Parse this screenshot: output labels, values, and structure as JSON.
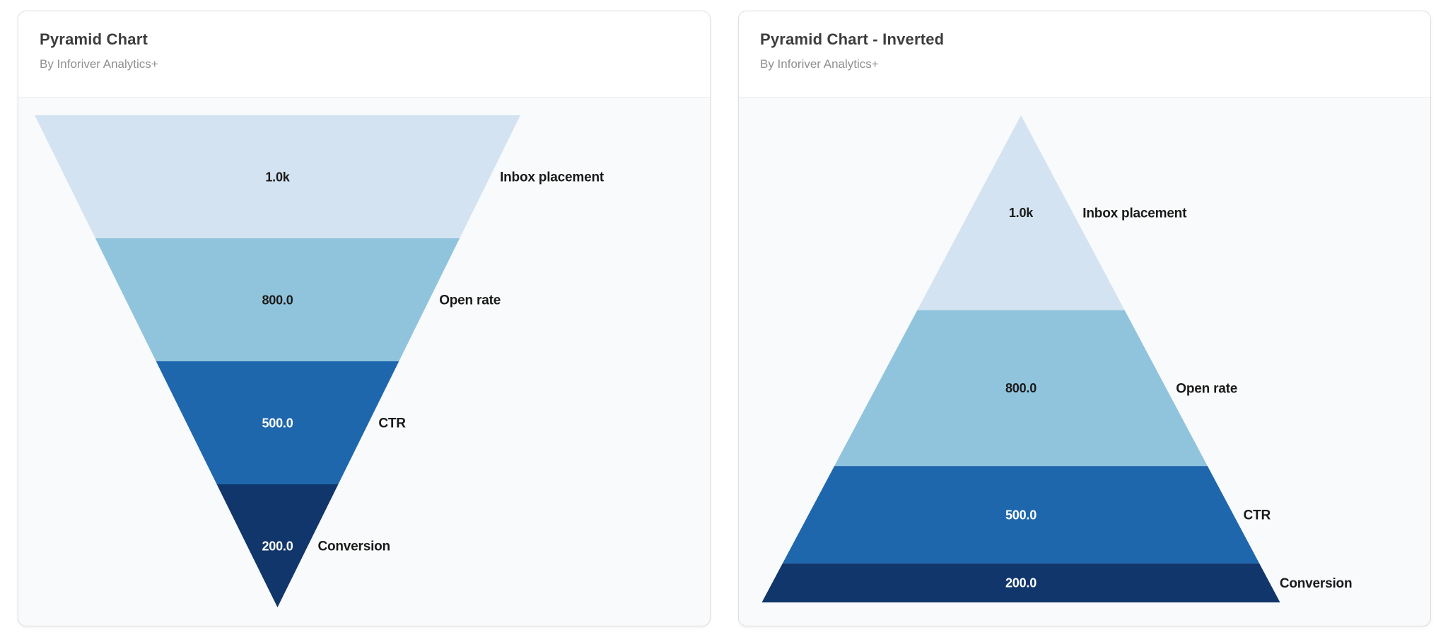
{
  "page": {
    "background": "#ffffff"
  },
  "cards": [
    {
      "title": "Pyramid Chart",
      "subtitle": "By Inforiver Analytics+"
    },
    {
      "title": "Pyramid Chart - Inverted",
      "subtitle": "By Inforiver Analytics+"
    }
  ],
  "chart_data": [
    {
      "type": "pyramid",
      "title": "Pyramid Chart",
      "subtitle": "By Inforiver Analytics+",
      "orientation": "point-down",
      "segment_sizing": "equal-height",
      "categories": [
        "Inbox placement",
        "Open rate",
        "CTR",
        "Conversion"
      ],
      "values": [
        1000,
        800,
        500,
        200
      ],
      "value_labels": [
        "1.0k",
        "800.0",
        "500.0",
        "200.0"
      ],
      "segment_colors": [
        "#d4e3f1",
        "#90c4dd",
        "#1f67ad",
        "#11366b"
      ],
      "value_label_colors": [
        "#1a1a1a",
        "#1a1a1a",
        "#ffffff",
        "#ffffff"
      ],
      "category_label_color": "#1a1a1a",
      "category_label_position": "right-of-segment",
      "legend": "none",
      "axes": "none",
      "grid": false
    },
    {
      "type": "pyramid",
      "title": "Pyramid Chart - Inverted",
      "subtitle": "By Inforiver Analytics+",
      "orientation": "point-up",
      "segment_sizing": "proportional-to-value",
      "categories": [
        "Inbox placement",
        "Open rate",
        "CTR",
        "Conversion"
      ],
      "values": [
        1000,
        800,
        500,
        200
      ],
      "value_labels": [
        "1.0k",
        "800.0",
        "500.0",
        "200.0"
      ],
      "segment_colors": [
        "#d4e3f1",
        "#90c4dd",
        "#1f67ad",
        "#11366b"
      ],
      "value_label_colors": [
        "#1a1a1a",
        "#1a1a1a",
        "#ffffff",
        "#ffffff"
      ],
      "category_label_color": "#1a1a1a",
      "category_label_position": "right-of-segment",
      "legend": "none",
      "axes": "none",
      "grid": false
    }
  ]
}
